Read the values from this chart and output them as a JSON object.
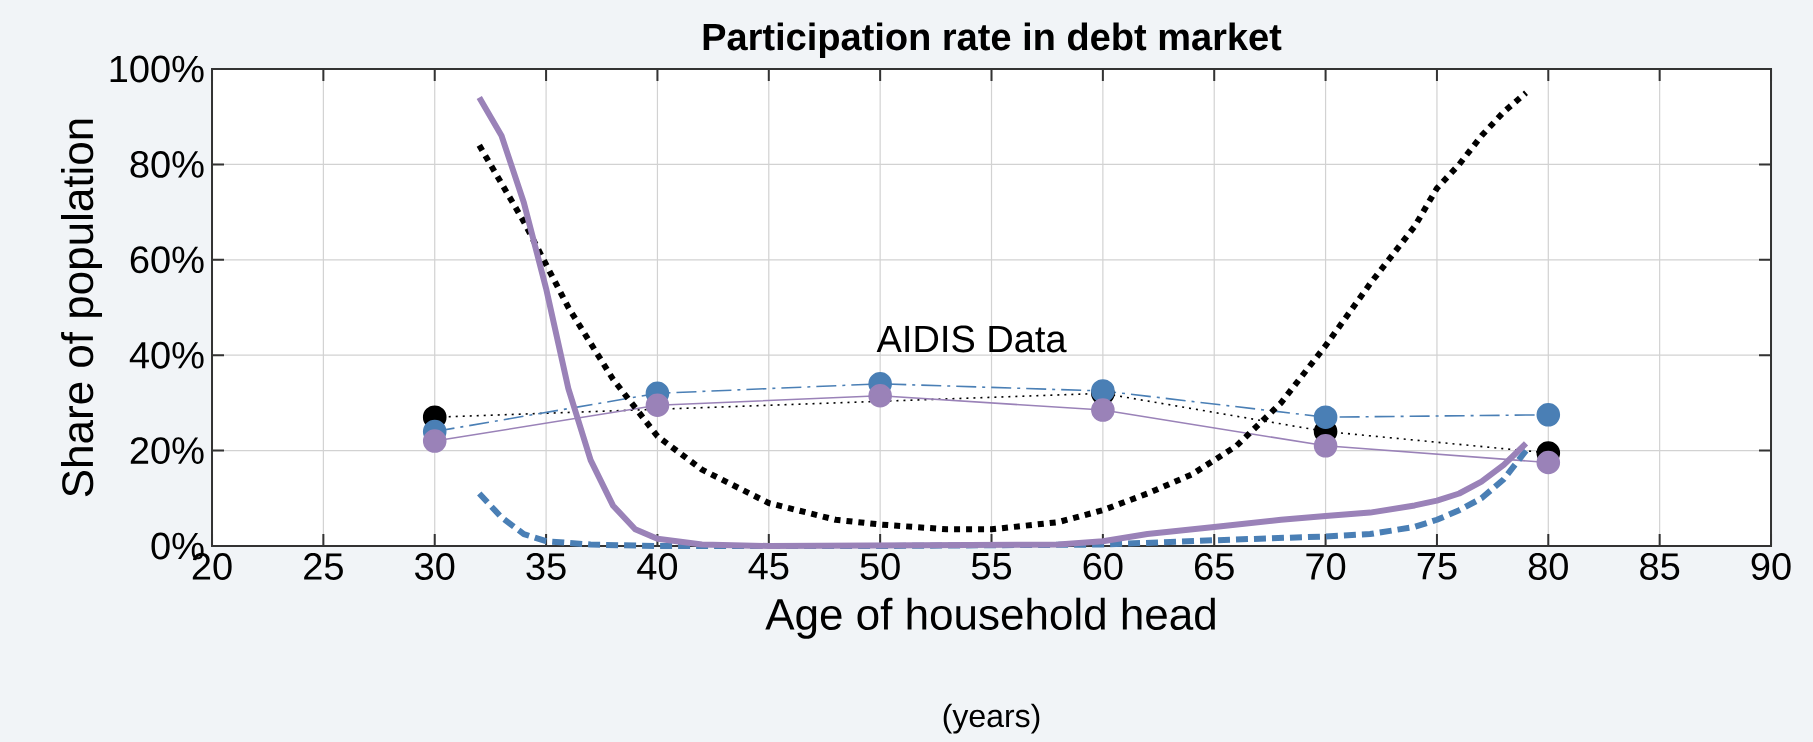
{
  "chart_data": {
    "type": "line",
    "title": "Participation rate in debt market",
    "xlabel": "Age of household head",
    "ylabel": "Share of population",
    "annotations": [
      "AIDIS Data",
      "(years)"
    ],
    "xlim": [
      20,
      90
    ],
    "xticks": [
      20,
      25,
      30,
      35,
      40,
      45,
      50,
      55,
      60,
      65,
      70,
      75,
      80,
      85,
      90
    ],
    "ylim": [
      0,
      100
    ],
    "yticks": [
      {
        "value": 0,
        "label": "0%"
      },
      {
        "value": 20,
        "label": "20%"
      },
      {
        "value": 40,
        "label": "40%"
      },
      {
        "value": 60,
        "label": "60%"
      },
      {
        "value": 80,
        "label": "80%"
      },
      {
        "value": 100,
        "label": "100%"
      }
    ],
    "grid": true,
    "series": [
      {
        "color": "#000000",
        "marker": "circle",
        "line_style": "dotted",
        "x": [
          30,
          40,
          50,
          60,
          70,
          80
        ],
        "values": [
          27,
          null,
          null,
          32,
          24,
          19.5
        ]
      },
      {
        "color": "#4a7fb5",
        "marker": "circle",
        "line_style": "dashdot",
        "x": [
          30,
          40,
          50,
          60,
          70,
          80
        ],
        "values": [
          24,
          32,
          34,
          32.5,
          27,
          27.5
        ]
      },
      {
        "color": "#9a82b8",
        "marker": "circle",
        "line_style": "solid",
        "x": [
          30,
          40,
          50,
          60,
          70,
          80
        ],
        "values": [
          22,
          29.5,
          31.5,
          28.5,
          21,
          17.5
        ]
      },
      {
        "color": "#000000",
        "marker": "none",
        "line_style": "dotted",
        "x": [
          32,
          34,
          36,
          38,
          40,
          42,
          45,
          48,
          50,
          53,
          55,
          58,
          60,
          62,
          64,
          66,
          68,
          70,
          72,
          74,
          75,
          76,
          77,
          78,
          79
        ],
        "values": [
          84,
          68,
          50,
          35,
          23,
          16,
          9,
          5.5,
          4.5,
          3.5,
          3.5,
          5,
          7.5,
          11,
          15,
          21,
          30,
          42,
          55,
          67,
          75,
          80,
          86,
          91,
          95
        ]
      },
      {
        "color": "#4a7fb5",
        "marker": "none",
        "line_style": "dashed",
        "x": [
          32,
          33,
          34,
          35,
          37,
          40,
          50,
          60,
          65,
          70,
          72,
          74,
          75,
          76,
          77,
          78,
          79
        ],
        "values": [
          11,
          6,
          2.5,
          1,
          0.3,
          0,
          0,
          0.3,
          1.2,
          2,
          2.5,
          4,
          5.5,
          7.5,
          10,
          14,
          20
        ]
      },
      {
        "color": "#9a82b8",
        "marker": "none",
        "line_style": "solid",
        "x": [
          32,
          33,
          34,
          35,
          36,
          37,
          38,
          39,
          40,
          42,
          45,
          58,
          60,
          62,
          65,
          68,
          70,
          72,
          74,
          75,
          76,
          77,
          78,
          79
        ],
        "values": [
          94,
          86,
          72,
          54,
          33,
          18,
          8.5,
          3.5,
          1.5,
          0.3,
          0,
          0.3,
          1,
          2.5,
          4,
          5.5,
          6.3,
          7,
          8.5,
          9.5,
          11,
          13.5,
          17,
          21.5
        ]
      }
    ]
  }
}
